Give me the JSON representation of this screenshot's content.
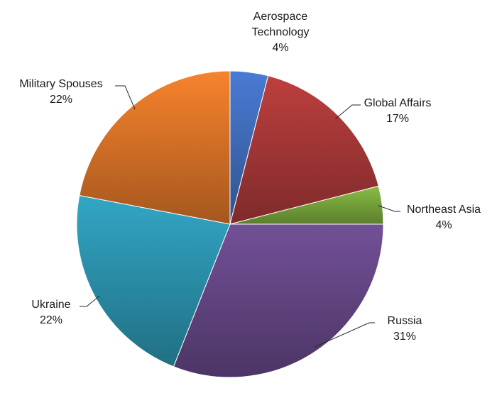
{
  "chart_data": {
    "type": "pie",
    "title": "",
    "start_angle_deg": 0,
    "direction": "clockwise",
    "slices": [
      {
        "label_lines": [
          "Aerospace",
          "Technology"
        ],
        "percent_label": "4%",
        "value": 4,
        "color": "#4472C4"
      },
      {
        "label_lines": [
          "Global Affairs"
        ],
        "percent_label": "17%",
        "value": 17,
        "color": "#B03A3A"
      },
      {
        "label_lines": [
          "Northeast Asia"
        ],
        "percent_label": "4%",
        "value": 4,
        "color": "#7FAF3F"
      },
      {
        "label_lines": [
          "Russia"
        ],
        "percent_label": "31%",
        "value": 31,
        "color": "#6A4A8C"
      },
      {
        "label_lines": [
          "Ukraine"
        ],
        "percent_label": "22%",
        "value": 22,
        "color": "#2E9AB6"
      },
      {
        "label_lines": [
          "Military Spouses"
        ],
        "percent_label": "22%",
        "value": 22,
        "color": "#E5792A"
      }
    ]
  }
}
